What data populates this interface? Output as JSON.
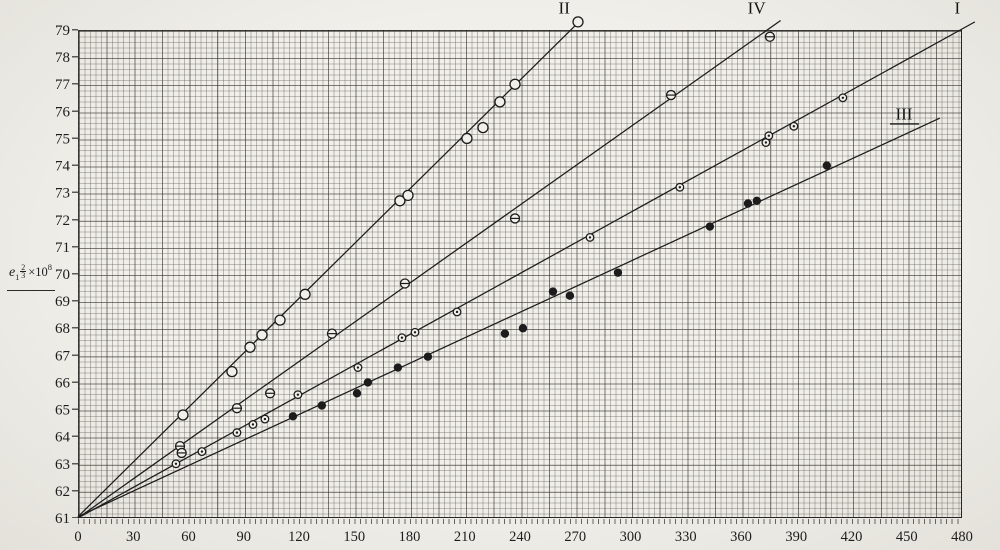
{
  "page": {
    "background": "#eceae5",
    "ink": "#1c1c1c"
  },
  "y_axis_title": {
    "base": "e",
    "sub": "1",
    "frac_num": "2",
    "frac_den": "3",
    "times_base": "×10",
    "exp": "8"
  },
  "chart_data": {
    "type": "line",
    "title": "",
    "xlabel": "",
    "ylabel": "e1^(2/3) × 10^8",
    "xlim": [
      0,
      480
    ],
    "ylim": [
      61,
      79
    ],
    "grid": true,
    "legend_position": "inline-labels-at-line-ends",
    "x_ticks": [
      0,
      30,
      60,
      90,
      120,
      150,
      180,
      210,
      240,
      270,
      300,
      330,
      360,
      390,
      420,
      450,
      480
    ],
    "y_ticks": [
      61,
      62,
      63,
      64,
      65,
      66,
      67,
      68,
      69,
      70,
      71,
      72,
      73,
      74,
      75,
      76,
      77,
      78,
      79
    ],
    "series": [
      {
        "name": "II",
        "marker": "open-circle",
        "marker_r": 5,
        "label_pos": [
          264,
          79.6
        ],
        "label_underline": false,
        "line": [
          [
            0,
            61.05
          ],
          [
            273.5,
            79.4
          ]
        ],
        "points": [
          [
            57.0,
            64.8
          ],
          [
            83.6,
            66.4
          ],
          [
            93.4,
            67.3
          ],
          [
            99.9,
            67.75
          ],
          [
            109.7,
            68.3
          ],
          [
            123.3,
            69.25
          ],
          [
            174.8,
            72.7
          ],
          [
            179.2,
            72.9
          ],
          [
            211.2,
            75.0
          ],
          [
            219.9,
            75.4
          ],
          [
            229.1,
            76.35
          ],
          [
            237.3,
            77.0
          ],
          [
            271.5,
            79.3
          ]
        ]
      },
      {
        "name": "IV",
        "marker": "circle-hbar",
        "marker_r": 4.5,
        "label_pos": [
          368.5,
          79.6
        ],
        "label_underline": false,
        "line": [
          [
            0,
            61.0
          ],
          [
            381.5,
            79.35
          ]
        ],
        "points": [
          [
            55.4,
            63.65
          ],
          [
            56.3,
            63.4
          ],
          [
            86.3,
            65.05
          ],
          [
            104.3,
            65.6
          ],
          [
            137.9,
            67.8
          ],
          [
            177.5,
            69.65
          ],
          [
            237.3,
            72.05
          ],
          [
            322.0,
            76.6
          ],
          [
            375.7,
            78.75
          ]
        ]
      },
      {
        "name": "I",
        "marker": "circle-dot",
        "marker_r": 3.8,
        "label_pos": [
          477.5,
          79.6
        ],
        "label_underline": false,
        "line": [
          [
            0,
            61.0
          ],
          [
            487.0,
            79.3
          ]
        ],
        "points": [
          [
            53.2,
            63.0
          ],
          [
            67.3,
            63.45
          ],
          [
            86.3,
            64.15
          ],
          [
            95.0,
            64.45
          ],
          [
            101.5,
            64.65
          ],
          [
            119.4,
            65.55
          ],
          [
            152.0,
            66.55
          ],
          [
            175.9,
            67.65
          ],
          [
            183.0,
            67.85
          ],
          [
            205.8,
            68.6
          ],
          [
            278.0,
            71.35
          ],
          [
            326.8,
            73.2
          ],
          [
            373.5,
            74.85
          ],
          [
            375.1,
            75.1
          ],
          [
            388.7,
            75.45
          ],
          [
            415.3,
            76.5
          ]
        ]
      },
      {
        "name": "III",
        "marker": "filled-circle",
        "marker_r": 3.7,
        "label_pos": [
          448.5,
          75.7
        ],
        "label_underline": true,
        "line": [
          [
            0,
            61.05
          ],
          [
            468.0,
            75.75
          ]
        ],
        "points": [
          [
            116.7,
            64.75
          ],
          [
            132.4,
            65.15
          ],
          [
            151.5,
            65.6
          ],
          [
            157.4,
            66.0
          ],
          [
            173.7,
            66.55
          ],
          [
            190.0,
            66.95
          ],
          [
            231.8,
            67.8
          ],
          [
            241.6,
            68.0
          ],
          [
            257.9,
            69.35
          ],
          [
            267.1,
            69.2
          ],
          [
            293.2,
            70.05
          ],
          [
            343.1,
            71.75
          ],
          [
            363.8,
            72.6
          ],
          [
            368.6,
            72.7
          ],
          [
            406.6,
            74.0
          ]
        ]
      }
    ]
  }
}
